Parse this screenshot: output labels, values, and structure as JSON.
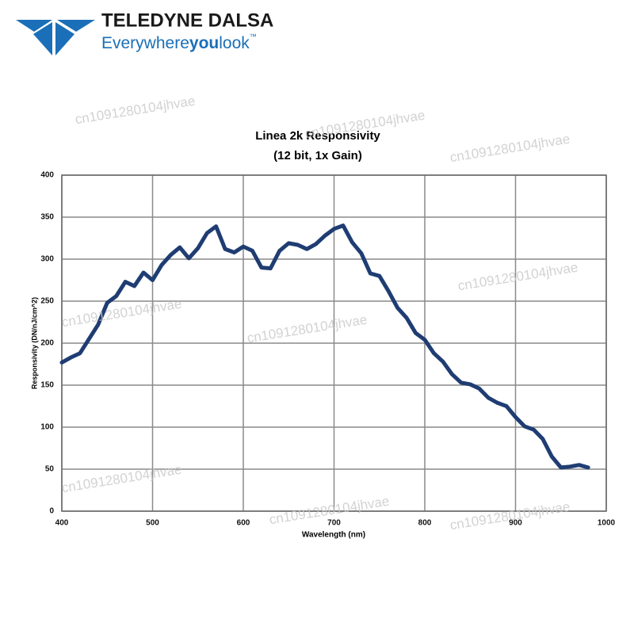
{
  "logo": {
    "name": "TELEDYNE DALSA",
    "tagline": [
      "Everywhere",
      "you",
      "look",
      "™"
    ]
  },
  "watermark": "cn1091280104jhvae",
  "chart_data": {
    "type": "line",
    "title": "Linea 2k Responsivity",
    "subtitle": "(12 bit, 1x Gain)",
    "x_label": "Wavelength (nm)",
    "y_label": "Responsivity (DN/nJ/cm^2)",
    "xlim": [
      400,
      1000
    ],
    "xticks": [
      400,
      500,
      600,
      700,
      800,
      900,
      1000
    ],
    "ylim": [
      0,
      400
    ],
    "yticks": [
      0,
      50,
      100,
      150,
      200,
      250,
      300,
      350,
      400
    ],
    "grid": true,
    "x": [
      400,
      410,
      420,
      430,
      440,
      450,
      460,
      470,
      480,
      490,
      500,
      510,
      520,
      530,
      540,
      550,
      560,
      570,
      580,
      590,
      600,
      610,
      620,
      630,
      640,
      650,
      660,
      670,
      680,
      690,
      700,
      710,
      720,
      730,
      740,
      750,
      760,
      770,
      780,
      790,
      800,
      810,
      820,
      830,
      840,
      850,
      860,
      870,
      880,
      890,
      900,
      910,
      920,
      930,
      940,
      950,
      960,
      970,
      980
    ],
    "series": [
      {
        "color": "#1f3d73",
        "values": [
          177,
          183,
          188,
          205,
          222,
          248,
          256,
          273,
          268,
          284,
          275,
          293,
          305,
          314,
          301,
          313,
          331,
          339,
          312,
          308,
          315,
          310,
          290,
          289,
          310,
          319,
          317,
          312,
          318,
          328,
          336,
          340,
          320,
          307,
          283,
          280,
          262,
          242,
          230,
          212,
          204,
          188,
          178,
          163,
          153,
          151,
          146,
          135,
          129,
          125,
          112,
          101,
          97,
          86,
          65,
          52,
          53,
          55,
          52
        ]
      }
    ]
  }
}
